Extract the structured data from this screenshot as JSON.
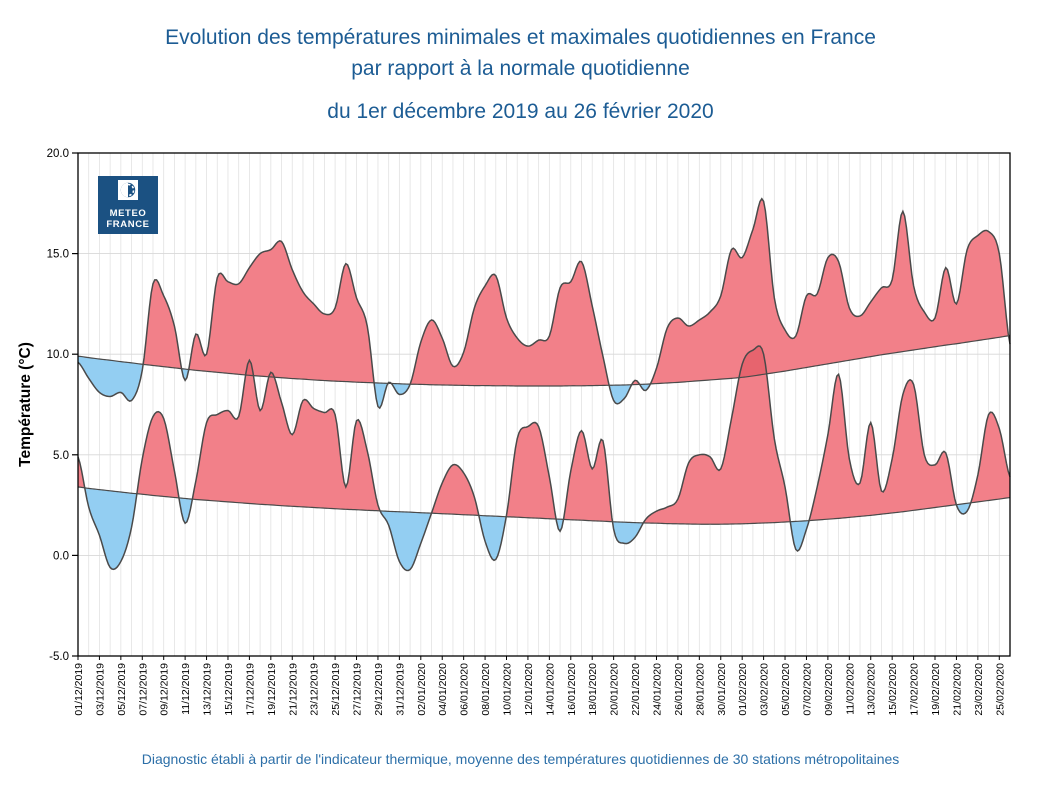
{
  "title": {
    "line1": "Evolution des températures minimales et maximales quotidiennes en France",
    "line2": "par rapport à la normale quotidienne",
    "subtitle": "du 1er décembre 2019 au 26 février 2020"
  },
  "footer": {
    "text": "Diagnostic établi à partir de l'indicateur thermique, moyenne des températures quotidiennes de 30 stations métropolitaines"
  },
  "logo": {
    "line1": "METEO",
    "line2": "FRANCE",
    "bg_color": "#1b5182"
  },
  "axes": {
    "y_label": "Température (°C)",
    "y_ticks": [
      20,
      15,
      10,
      5,
      0,
      -5
    ],
    "y_tick_labels": [
      "20.0",
      "15.0",
      "10.0",
      "5.0",
      "0.0",
      "-5.0"
    ],
    "y_min": -5,
    "y_max": 20,
    "x_tick_step": 2
  },
  "colors": {
    "above_normal": "#f28089",
    "below_normal": "#93cef2",
    "overlap_dark": "#e7646e",
    "curve_stroke": "#4a4a4a",
    "grid_vertical": "#e2e2e2",
    "grid_horizontal": "#d8d8d8",
    "frame": "#000000",
    "title_blue": "#1c5c94",
    "footer_blue": "#2c6fa8",
    "logo_blue": "#1b5182"
  },
  "chart_data": {
    "type": "area",
    "title": "Evolution des températures minimales et maximales quotidiennes en France par rapport à la normale quotidienne",
    "xlabel": "",
    "ylabel": "Température (°C)",
    "ylim": [
      -5,
      20
    ],
    "grid": "vertical daily + horizontal every 5°C",
    "legend_position": "none",
    "x": [
      "01/12/2019",
      "02/12/2019",
      "03/12/2019",
      "04/12/2019",
      "05/12/2019",
      "06/12/2019",
      "07/12/2019",
      "08/12/2019",
      "09/12/2019",
      "10/12/2019",
      "11/12/2019",
      "12/12/2019",
      "13/12/2019",
      "14/12/2019",
      "15/12/2019",
      "16/12/2019",
      "17/12/2019",
      "18/12/2019",
      "19/12/2019",
      "20/12/2019",
      "21/12/2019",
      "22/12/2019",
      "23/12/2019",
      "24/12/2019",
      "25/12/2019",
      "26/12/2019",
      "27/12/2019",
      "28/12/2019",
      "29/12/2019",
      "30/12/2019",
      "31/12/2019",
      "01/01/2020",
      "02/01/2020",
      "03/01/2020",
      "04/01/2020",
      "05/01/2020",
      "06/01/2020",
      "07/01/2020",
      "08/01/2020",
      "09/01/2020",
      "10/01/2020",
      "11/01/2020",
      "12/01/2020",
      "13/01/2020",
      "14/01/2020",
      "15/01/2020",
      "16/01/2020",
      "17/01/2020",
      "18/01/2020",
      "19/01/2020",
      "20/01/2020",
      "21/01/2020",
      "22/01/2020",
      "23/01/2020",
      "24/01/2020",
      "25/01/2020",
      "26/01/2020",
      "27/01/2020",
      "28/01/2020",
      "29/01/2020",
      "30/01/2020",
      "31/01/2020",
      "01/02/2020",
      "02/02/2020",
      "03/02/2020",
      "04/02/2020",
      "05/02/2020",
      "06/02/2020",
      "07/02/2020",
      "08/02/2020",
      "09/02/2020",
      "10/02/2020",
      "11/02/2020",
      "12/02/2020",
      "13/02/2020",
      "14/02/2020",
      "15/02/2020",
      "16/02/2020",
      "17/02/2020",
      "18/02/2020",
      "19/02/2020",
      "20/02/2020",
      "21/02/2020",
      "22/02/2020",
      "23/02/2020",
      "24/02/2020",
      "25/02/2020",
      "26/02/2020"
    ],
    "series": {
      "tmax": [
        9.6,
        8.8,
        8.1,
        7.9,
        8.1,
        7.7,
        9.2,
        13.5,
        12.9,
        11.4,
        8.7,
        11.0,
        10.0,
        13.8,
        13.6,
        13.5,
        14.3,
        15.0,
        15.2,
        15.6,
        14.2,
        13.1,
        12.5,
        12.0,
        12.3,
        14.5,
        12.8,
        11.4,
        7.4,
        8.6,
        8.0,
        8.5,
        10.6,
        11.7,
        10.8,
        9.4,
        10.1,
        12.3,
        13.4,
        13.9,
        11.8,
        10.8,
        10.4,
        10.7,
        10.9,
        13.3,
        13.6,
        14.6,
        12.4,
        9.9,
        7.7,
        7.8,
        8.7,
        8.2,
        9.3,
        11.3,
        11.8,
        11.4,
        11.7,
        12.1,
        12.9,
        15.2,
        14.8,
        16.2,
        17.6,
        12.8,
        11.2,
        10.9,
        12.9,
        13.0,
        14.8,
        14.6,
        12.3,
        11.9,
        12.6,
        13.3,
        13.7,
        17.1,
        13.4,
        12.1,
        11.8,
        14.3,
        12.5,
        15.2,
        15.9,
        16.1,
        15.0,
        10.5
      ],
      "normal_max": [
        9.9,
        9.83,
        9.76,
        9.7,
        9.63,
        9.57,
        9.5,
        9.44,
        9.38,
        9.32,
        9.26,
        9.2,
        9.15,
        9.1,
        9.05,
        9.0,
        8.95,
        8.91,
        8.87,
        8.83,
        8.79,
        8.76,
        8.72,
        8.69,
        8.66,
        8.64,
        8.61,
        8.59,
        8.57,
        8.55,
        8.53,
        8.51,
        8.5,
        8.48,
        8.47,
        8.46,
        8.45,
        8.44,
        8.44,
        8.43,
        8.43,
        8.42,
        8.42,
        8.42,
        8.42,
        8.42,
        8.43,
        8.43,
        8.44,
        8.45,
        8.46,
        8.47,
        8.49,
        8.51,
        8.54,
        8.57,
        8.6,
        8.64,
        8.68,
        8.72,
        8.76,
        8.8,
        8.85,
        8.92,
        9.0,
        9.08,
        9.16,
        9.25,
        9.34,
        9.43,
        9.52,
        9.61,
        9.7,
        9.79,
        9.88,
        9.97,
        10.05,
        10.13,
        10.21,
        10.29,
        10.37,
        10.45,
        10.52,
        10.6,
        10.68,
        10.76,
        10.84,
        10.92
      ],
      "tmin": [
        4.9,
        2.4,
        1.0,
        -0.6,
        -0.3,
        1.4,
        4.8,
        6.9,
        6.8,
        4.2,
        1.6,
        3.7,
        6.6,
        7.0,
        7.2,
        6.9,
        9.7,
        7.2,
        9.1,
        7.6,
        6.0,
        7.7,
        7.3,
        7.1,
        7.0,
        3.4,
        6.7,
        5.2,
        2.5,
        1.5,
        -0.3,
        -0.7,
        0.6,
        2.1,
        3.6,
        4.5,
        4.1,
        2.9,
        0.7,
        -0.2,
        2.0,
        5.8,
        6.4,
        6.4,
        3.9,
        1.2,
        4.2,
        6.2,
        4.3,
        5.7,
        1.3,
        0.6,
        0.9,
        1.8,
        2.2,
        2.4,
        2.8,
        4.6,
        5.0,
        4.9,
        4.3,
        6.8,
        9.5,
        10.2,
        10.0,
        5.8,
        3.4,
        0.3,
        1.3,
        3.4,
        6.0,
        9.0,
        4.8,
        3.6,
        6.6,
        3.2,
        4.8,
        8.0,
        8.5,
        5.0,
        4.5,
        5.1,
        2.5,
        2.2,
        4.0,
        7.0,
        6.3,
        3.9
      ],
      "normal_min": [
        3.4,
        3.33,
        3.27,
        3.21,
        3.15,
        3.09,
        3.04,
        2.98,
        2.93,
        2.88,
        2.83,
        2.78,
        2.74,
        2.7,
        2.66,
        2.62,
        2.58,
        2.54,
        2.51,
        2.47,
        2.44,
        2.41,
        2.38,
        2.35,
        2.32,
        2.29,
        2.27,
        2.24,
        2.22,
        2.19,
        2.17,
        2.15,
        2.12,
        2.1,
        2.07,
        2.05,
        2.02,
        2.0,
        1.97,
        1.95,
        1.92,
        1.9,
        1.87,
        1.85,
        1.82,
        1.8,
        1.77,
        1.75,
        1.72,
        1.7,
        1.67,
        1.65,
        1.63,
        1.61,
        1.6,
        1.58,
        1.57,
        1.56,
        1.55,
        1.55,
        1.55,
        1.56,
        1.57,
        1.59,
        1.61,
        1.63,
        1.66,
        1.69,
        1.72,
        1.76,
        1.8,
        1.84,
        1.89,
        1.94,
        1.99,
        2.05,
        2.11,
        2.17,
        2.24,
        2.31,
        2.38,
        2.45,
        2.52,
        2.59,
        2.66,
        2.73,
        2.8,
        2.87
      ]
    }
  }
}
